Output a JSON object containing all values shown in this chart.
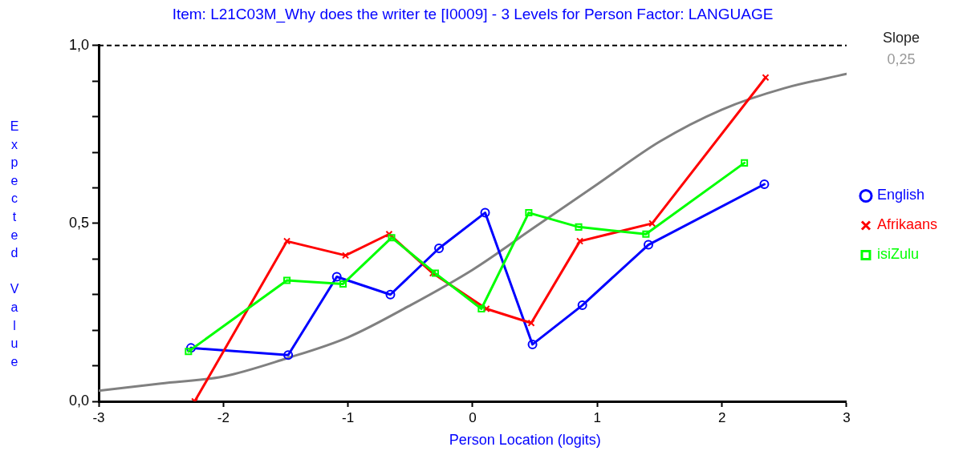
{
  "chart_data": {
    "type": "line",
    "title": "Item: L21C03M_Why does the writer te [I0009] - 3 Levels for Person Factor: LANGUAGE",
    "xlabel": "Person Location (logits)",
    "ylabel": "Expected Value",
    "annotations": [
      "Slope",
      "0,25"
    ],
    "xlim": [
      -3,
      3
    ],
    "xticks": [
      -3,
      -2,
      -1,
      0,
      1,
      2,
      3
    ],
    "ylim": [
      0,
      1
    ],
    "yticks": [
      {
        "value": 0,
        "label": "0,0"
      },
      {
        "value": 0.1,
        "label": null
      },
      {
        "value": 0.2,
        "label": null
      },
      {
        "value": 0.3,
        "label": null
      },
      {
        "value": 0.4,
        "label": null
      },
      {
        "value": 0.5,
        "label": "0,5"
      },
      {
        "value": 0.6,
        "label": null
      },
      {
        "value": 0.7,
        "label": null
      },
      {
        "value": 0.8,
        "label": null
      },
      {
        "value": 0.9,
        "label": null
      },
      {
        "value": 1,
        "label": "1,0"
      }
    ],
    "series": [
      {
        "color": "#808080",
        "marker": "none",
        "x": [
          -3,
          -2.5,
          -2,
          -1.5,
          -1,
          -0.5,
          0,
          0.5,
          1,
          1.5,
          2,
          2.5,
          3
        ],
        "values": [
          0.03,
          0.05,
          0.07,
          0.12,
          0.18,
          0.27,
          0.37,
          0.49,
          0.61,
          0.73,
          0.82,
          0.88,
          0.92
        ]
      },
      {
        "name": "English",
        "color": "#0000ff",
        "marker": "circle",
        "x": [
          -2.26,
          -1.48,
          -1.09,
          -0.66,
          -0.27,
          0.1,
          0.48,
          0.88,
          1.41,
          2.34
        ],
        "values": [
          0.15,
          0.13,
          0.35,
          0.3,
          0.43,
          0.53,
          0.16,
          0.27,
          0.44,
          0.61
        ]
      },
      {
        "name": "Afrikaans",
        "color": "#ff0000",
        "marker": "cross",
        "x": [
          -2.23,
          -1.49,
          -1.02,
          -0.67,
          -0.32,
          0.11,
          0.47,
          0.86,
          1.44,
          2.35
        ],
        "values": [
          0,
          0.45,
          0.41,
          0.47,
          0.36,
          0.26,
          0.22,
          0.45,
          0.5,
          0.91
        ]
      },
      {
        "name": "isiZulu",
        "color": "#00ff00",
        "marker": "square",
        "x": [
          -2.28,
          -1.49,
          -1.04,
          -0.65,
          -0.3,
          0.07,
          0.45,
          0.85,
          1.39,
          2.18
        ],
        "values": [
          0.14,
          0.34,
          0.33,
          0.46,
          0.36,
          0.26,
          0.53,
          0.49,
          0.47,
          0.67
        ]
      }
    ],
    "ref_lines": [
      {
        "axis": "y",
        "value": 1,
        "line_style": "dashed",
        "color": "#000000"
      }
    ],
    "legend": "right",
    "grid": false
  }
}
